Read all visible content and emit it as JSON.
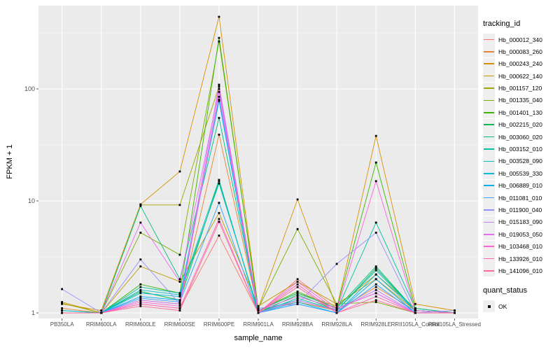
{
  "axes": {
    "y": {
      "title": "FPKM + 1",
      "ticks": [
        {
          "label": "1",
          "value": 1
        },
        {
          "label": "10",
          "value": 10
        },
        {
          "label": "100",
          "value": 100
        }
      ]
    },
    "x": {
      "title": "sample_name"
    }
  },
  "legend": {
    "tracking_title": "tracking_id",
    "quant_title": "quant_status",
    "quant_items": [
      {
        "label": "OK",
        "marker": "black-square"
      }
    ]
  },
  "chart_data": {
    "type": "line",
    "title": "",
    "xlabel": "sample_name",
    "ylabel": "FPKM + 1",
    "y_scale": "log10",
    "ylim": [
      0.9,
      550
    ],
    "grid": true,
    "legend_position": "right",
    "panel_background": "#EBEBEB",
    "gridline_color": "#FFFFFF",
    "point_color": "#000000",
    "minor_gridlines": [
      3.1623,
      31.623,
      316.23
    ],
    "categories": [
      "PB350LA",
      "RRIM600LA",
      "RRIM600LE",
      "RRIM600SE",
      "RRIM600PE",
      "RRIM901LA",
      "RRIM928BA",
      "RRIM928LA",
      "RRIM928LE",
      "RRII105LA_Control",
      "RRII105LA_Stressed"
    ],
    "series": [
      {
        "name": "Hb_000012_340",
        "color": "#F8766D",
        "values": [
          1.0,
          1.0,
          1.2,
          1.1,
          4.9,
          1.0,
          2.0,
          1.1,
          1.5,
          1.0,
          1.0
        ]
      },
      {
        "name": "Hb_000083_260",
        "color": "#EA8331",
        "values": [
          1.1,
          1.0,
          1.3,
          1.2,
          39,
          1.05,
          1.25,
          1.05,
          1.7,
          1.05,
          1.0
        ]
      },
      {
        "name": "Hb_000243_240",
        "color": "#D89000",
        "values": [
          1.2,
          1.05,
          9.3,
          18.3,
          440,
          1.1,
          10.3,
          1.1,
          38,
          1.2,
          1.05
        ]
      },
      {
        "name": "Hb_000622_140",
        "color": "#C09B00",
        "values": [
          1.25,
          1.0,
          2.6,
          1.9,
          7.8,
          1.15,
          1.9,
          1.2,
          2.0,
          1.05,
          1.0
        ]
      },
      {
        "name": "Hb_001157_120",
        "color": "#A3A500",
        "values": [
          1.22,
          1.0,
          9.2,
          9.2,
          105,
          1.05,
          1.5,
          1.15,
          2.2,
          1.1,
          1.0
        ]
      },
      {
        "name": "Hb_001335_040",
        "color": "#7CAE00",
        "values": [
          1.0,
          1.0,
          5.2,
          3.3,
          265,
          1.1,
          5.6,
          1.2,
          1.25,
          1.0,
          1.0
        ]
      },
      {
        "name": "Hb_001401_130",
        "color": "#39B600",
        "values": [
          1.0,
          1.0,
          1.8,
          1.5,
          285,
          1.05,
          1.55,
          1.1,
          22,
          1.1,
          1.0
        ]
      },
      {
        "name": "Hb_002215_020",
        "color": "#00BB4E",
        "values": [
          1.0,
          1.0,
          1.55,
          1.3,
          15,
          1.0,
          1.45,
          1.05,
          2.5,
          1.05,
          1.0
        ]
      },
      {
        "name": "Hb_003060_020",
        "color": "#00BF7D",
        "values": [
          1.0,
          1.0,
          9.0,
          2.0,
          55,
          1.05,
          1.5,
          1.1,
          2.6,
          1.05,
          1.0
        ]
      },
      {
        "name": "Hb_003152_010",
        "color": "#00C1A3",
        "values": [
          1.05,
          1.0,
          1.7,
          1.5,
          15.4,
          1.0,
          1.35,
          1.05,
          6.4,
          1.1,
          1.0
        ]
      },
      {
        "name": "Hb_003528_090",
        "color": "#00BFC4",
        "values": [
          1.05,
          1.0,
          1.6,
          1.45,
          14.3,
          1.05,
          1.3,
          1.05,
          2.4,
          1.05,
          1.0
        ]
      },
      {
        "name": "Hb_005539_330",
        "color": "#00BAE0",
        "values": [
          1.0,
          1.0,
          1.5,
          1.4,
          78,
          1.0,
          1.25,
          1.0,
          2.2,
          1.05,
          1.0
        ]
      },
      {
        "name": "Hb_006889_010",
        "color": "#00B0F6",
        "values": [
          1.0,
          1.0,
          1.4,
          1.3,
          80,
          1.0,
          1.2,
          1.0,
          2.0,
          1.0,
          1.0
        ]
      },
      {
        "name": "Hb_011081_010",
        "color": "#35A2FF",
        "values": [
          1.0,
          1.0,
          1.35,
          1.25,
          9.6,
          1.0,
          1.2,
          1.0,
          1.8,
          1.0,
          1.0
        ]
      },
      {
        "name": "Hb_011900_040",
        "color": "#9590FF",
        "values": [
          1.63,
          1.0,
          3.0,
          1.2,
          85,
          1.1,
          1.2,
          2.74,
          5.2,
          1.0,
          1.05
        ]
      },
      {
        "name": "Hb_015183_090",
        "color": "#C77CFF",
        "values": [
          1.0,
          1.0,
          1.3,
          1.2,
          109,
          1.0,
          1.3,
          1.05,
          1.6,
          1.0,
          1.0
        ]
      },
      {
        "name": "Hb_019053_050",
        "color": "#E76BF3",
        "values": [
          1.0,
          1.0,
          6.4,
          1.9,
          100,
          1.05,
          1.4,
          1.1,
          1.5,
          1.0,
          1.0
        ]
      },
      {
        "name": "Hb_103468_010",
        "color": "#FA62DB",
        "values": [
          1.0,
          1.0,
          1.25,
          1.15,
          94,
          1.0,
          1.9,
          1.05,
          15,
          1.05,
          1.0
        ]
      },
      {
        "name": "Hb_133926_010",
        "color": "#FF62BC",
        "values": [
          1.0,
          1.0,
          1.2,
          1.1,
          6.9,
          1.0,
          1.8,
          1.0,
          1.4,
          1.0,
          1.0
        ]
      },
      {
        "name": "Hb_141096_010",
        "color": "#FF6A98",
        "values": [
          1.0,
          1.0,
          1.15,
          1.05,
          6.5,
          1.0,
          1.7,
          1.0,
          1.3,
          1.0,
          1.0
        ]
      }
    ]
  }
}
